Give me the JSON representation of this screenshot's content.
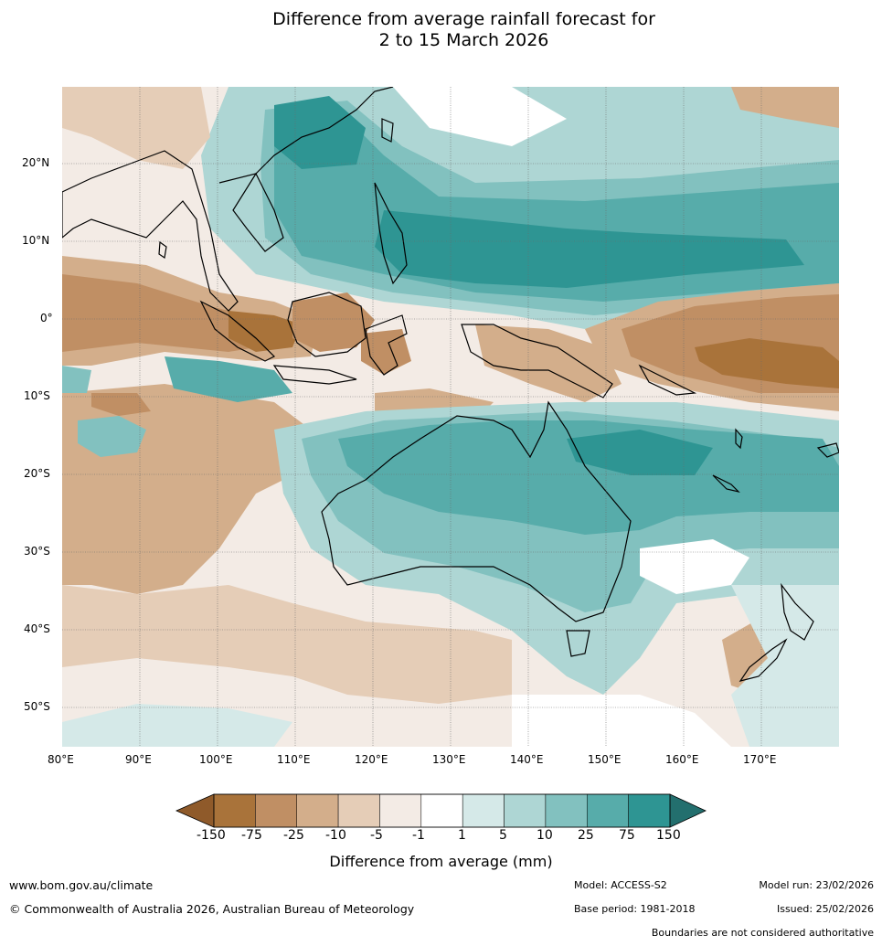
{
  "title_line1": "Difference from average rainfall forecast for",
  "title_line2": "2 to 15 March 2026",
  "lat_labels": [
    "20°N",
    "10°N",
    "0°",
    "10°S",
    "20°S",
    "30°S",
    "40°S",
    "50°S"
  ],
  "lon_labels": [
    "80°E",
    "90°E",
    "100°E",
    "110°E",
    "120°E",
    "130°E",
    "140°E",
    "150°E",
    "160°E",
    "170°E"
  ],
  "colorbar": {
    "ticks": [
      "-150",
      "-75",
      "-25",
      "-10",
      "-5",
      "-1",
      "1",
      "5",
      "10",
      "25",
      "75",
      "150"
    ],
    "colors": [
      "#a9733a",
      "#c08f64",
      "#d3ae8b",
      "#e5cdb7",
      "#f3ebe5",
      "#ffffff",
      "#d5e9e8",
      "#aed6d4",
      "#82c1bf",
      "#57acaa",
      "#2e9593"
    ],
    "under_color": "#8f5a2a",
    "over_color": "#236f6e",
    "label": "Difference from average (mm)"
  },
  "footer": {
    "url": "www.bom.gov.au/climate",
    "copyright": "© Commonwealth of Australia 2026, Australian Bureau of Meteorology",
    "model": "Model: ACCESS-S2",
    "base_period": "Base period: 1981-2018",
    "model_run": "Model run: 23/02/2026",
    "issued": "Issued: 25/02/2026",
    "disclaimer": "Boundaries are not considered authoritative"
  }
}
